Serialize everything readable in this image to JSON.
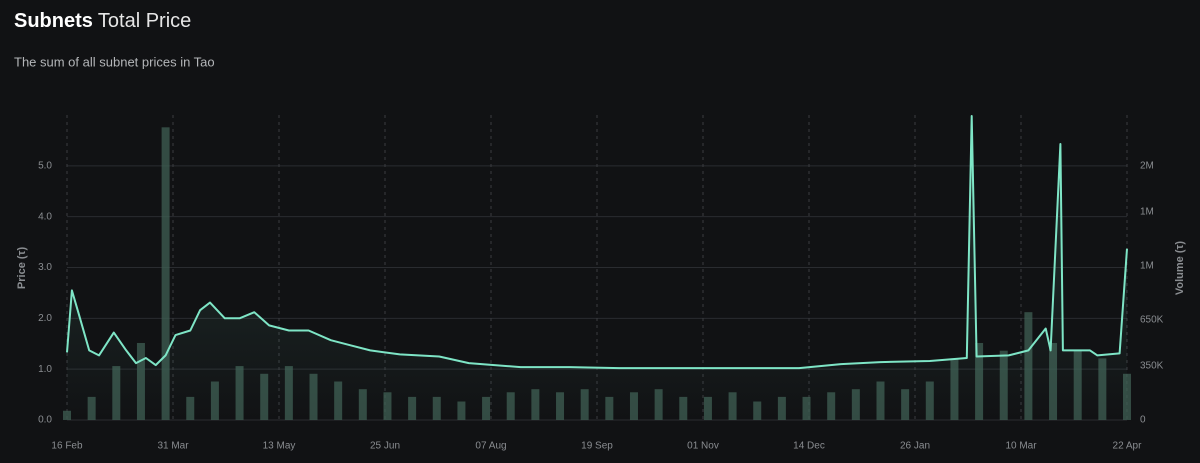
{
  "chart_data": {
    "type": "line",
    "title_bold": "Subnets",
    "title_light": "Total Price",
    "subtitle": "The sum of all subnet prices in Tao",
    "y_label": "Price (τ)",
    "y2_label": "Volume (τ)",
    "xlim": [
      0,
      430
    ],
    "xticks": [
      {
        "value": 0,
        "label": "16 Feb"
      },
      {
        "value": 43,
        "label": "31 Mar"
      },
      {
        "value": 86,
        "label": "13 May"
      },
      {
        "value": 129,
        "label": "25 Jun"
      },
      {
        "value": 172,
        "label": "07 Aug"
      },
      {
        "value": 215,
        "label": "19 Sep"
      },
      {
        "value": 258,
        "label": "01 Nov"
      },
      {
        "value": 301,
        "label": "14 Dec"
      },
      {
        "value": 344,
        "label": "26 Jan"
      },
      {
        "value": 387,
        "label": "10 Mar"
      },
      {
        "value": 430,
        "label": "22 Apr"
      }
    ],
    "ylim": [
      0,
      6
    ],
    "yticks": [
      {
        "value": 0,
        "label": "0.0"
      },
      {
        "value": 1,
        "label": "1.0"
      },
      {
        "value": 2,
        "label": "2.0"
      },
      {
        "value": 3,
        "label": "3.0"
      },
      {
        "value": 4,
        "label": "4.0"
      },
      {
        "value": 5,
        "label": "5.0"
      }
    ],
    "y2lim": [
      0,
      1980000
    ],
    "y2ticks": [
      0,
      {
        "value": 350000,
        "label": "350K"
      },
      {
        "value": 650000,
        "label": "650K"
      },
      {
        "value": 1000000,
        "label": "1M"
      },
      {
        "value": 1350000,
        "label": "1M"
      },
      {
        "value": 1650000,
        "label": "2M"
      }
    ],
    "grid": true,
    "series": [
      {
        "name": "Volume",
        "type": "bar",
        "axis": "y2",
        "color": "#3f5f53",
        "x": [
          0,
          10,
          20,
          30,
          40,
          50,
          60,
          70,
          80,
          90,
          100,
          110,
          120,
          130,
          140,
          150,
          160,
          170,
          180,
          190,
          200,
          210,
          220,
          230,
          240,
          250,
          260,
          270,
          280,
          290,
          300,
          310,
          320,
          330,
          340,
          350,
          360,
          370,
          380,
          390,
          400,
          410,
          420,
          430
        ],
        "values": [
          60000,
          150000,
          350000,
          500000,
          1900000,
          150000,
          250000,
          350000,
          300000,
          350000,
          300000,
          250000,
          200000,
          180000,
          150000,
          150000,
          120000,
          150000,
          180000,
          200000,
          180000,
          200000,
          150000,
          180000,
          200000,
          150000,
          150000,
          180000,
          120000,
          150000,
          150000,
          180000,
          200000,
          250000,
          200000,
          250000,
          400000,
          500000,
          450000,
          700000,
          500000,
          450000,
          400000,
          300000
        ]
      },
      {
        "name": "Price",
        "type": "line",
        "color": "#7ee5c6",
        "x": [
          0,
          2,
          5,
          9,
          13,
          19,
          24,
          28,
          32,
          36,
          40,
          44,
          50,
          54,
          58,
          64,
          70,
          76,
          82,
          90,
          98,
          107,
          115,
          123,
          135,
          151,
          163,
          184,
          204,
          224,
          249,
          273,
          297,
          314,
          330,
          350,
          365,
          367,
          369,
          382,
          390,
          397,
          399,
          403,
          404,
          415,
          418,
          427,
          430
        ],
        "values": [
          1.33,
          2.55,
          2.05,
          1.37,
          1.27,
          1.72,
          1.37,
          1.12,
          1.22,
          1.08,
          1.27,
          1.67,
          1.76,
          2.16,
          2.31,
          2.0,
          2.0,
          2.12,
          1.86,
          1.76,
          1.76,
          1.57,
          1.47,
          1.37,
          1.29,
          1.25,
          1.12,
          1.04,
          1.04,
          1.02,
          1.02,
          1.02,
          1.02,
          1.1,
          1.14,
          1.16,
          1.22,
          5.98,
          1.25,
          1.27,
          1.37,
          1.8,
          1.37,
          5.43,
          1.37,
          1.37,
          1.27,
          1.31,
          3.37
        ]
      }
    ]
  }
}
